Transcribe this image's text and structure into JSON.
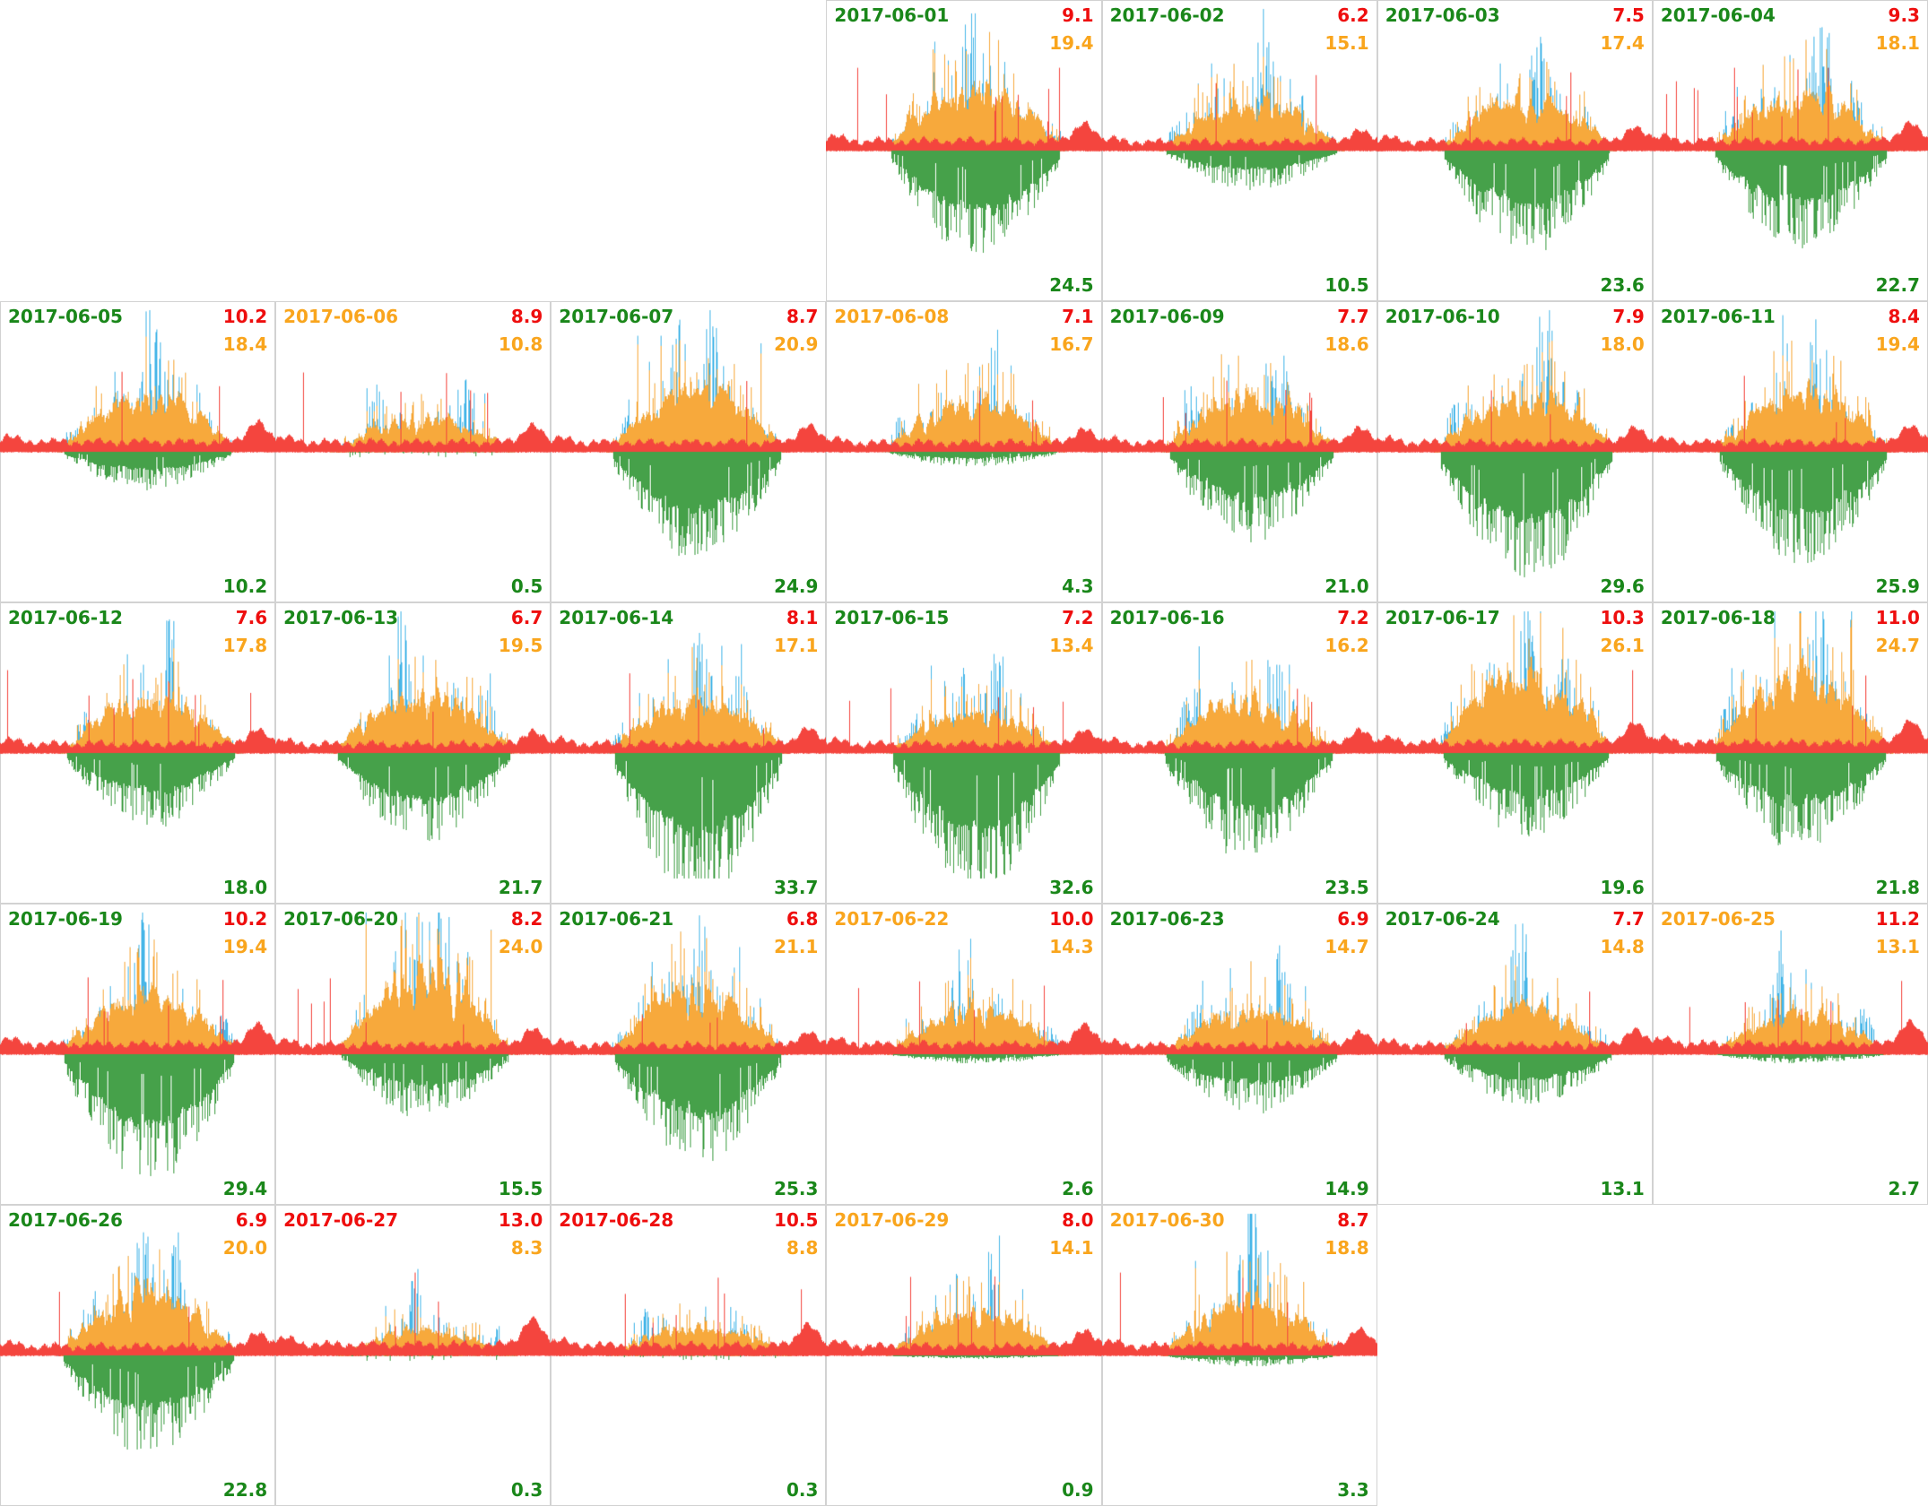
{
  "colors": {
    "text_green": "#1a871a",
    "text_orange": "#f9a51d",
    "text_red": "#ee0e0e",
    "chart_blue": "#49b7e8",
    "chart_orange": "#f7a93c",
    "chart_red": "#f4453e",
    "chart_green": "#46a14a",
    "cell_border": "#d2d2d2",
    "background": "#ffffff"
  },
  "chart_data": {
    "type": "area",
    "subtype": "small-multiples-daily-profiles",
    "title": "",
    "grid": {
      "rows": 5,
      "columns": 7,
      "first_panel_linear_index": 3
    },
    "x_axis": {
      "label": "",
      "range": "one day, no tick labels shown"
    },
    "y_axis": {
      "label": "",
      "baseline": 0,
      "note": "blue/orange/red areas plotted above baseline, green area mirrored below baseline; no tick labels shown"
    },
    "legend": "none shown; per-panel numbers are color-coded: red (top right), orange (below it), green (bottom right)",
    "panels": [
      {
        "date": "2017-06-01",
        "date_color": "green",
        "value_red": "9.1",
        "value_orange": "19.4",
        "value_green": "24.5"
      },
      {
        "date": "2017-06-02",
        "date_color": "green",
        "value_red": "6.2",
        "value_orange": "15.1",
        "value_green": "10.5"
      },
      {
        "date": "2017-06-03",
        "date_color": "green",
        "value_red": "7.5",
        "value_orange": "17.4",
        "value_green": "23.6"
      },
      {
        "date": "2017-06-04",
        "date_color": "green",
        "value_red": "9.3",
        "value_orange": "18.1",
        "value_green": "22.7"
      },
      {
        "date": "2017-06-05",
        "date_color": "green",
        "value_red": "10.2",
        "value_orange": "18.4",
        "value_green": "10.2"
      },
      {
        "date": "2017-06-06",
        "date_color": "orange",
        "value_red": "8.9",
        "value_orange": "10.8",
        "value_green": "0.5"
      },
      {
        "date": "2017-06-07",
        "date_color": "green",
        "value_red": "8.7",
        "value_orange": "20.9",
        "value_green": "24.9"
      },
      {
        "date": "2017-06-08",
        "date_color": "orange",
        "value_red": "7.1",
        "value_orange": "16.7",
        "value_green": "4.3"
      },
      {
        "date": "2017-06-09",
        "date_color": "green",
        "value_red": "7.7",
        "value_orange": "18.6",
        "value_green": "21.0"
      },
      {
        "date": "2017-06-10",
        "date_color": "green",
        "value_red": "7.9",
        "value_orange": "18.0",
        "value_green": "29.6"
      },
      {
        "date": "2017-06-11",
        "date_color": "green",
        "value_red": "8.4",
        "value_orange": "19.4",
        "value_green": "25.9"
      },
      {
        "date": "2017-06-12",
        "date_color": "green",
        "value_red": "7.6",
        "value_orange": "17.8",
        "value_green": "18.0"
      },
      {
        "date": "2017-06-13",
        "date_color": "green",
        "value_red": "6.7",
        "value_orange": "19.5",
        "value_green": "21.7"
      },
      {
        "date": "2017-06-14",
        "date_color": "green",
        "value_red": "8.1",
        "value_orange": "17.1",
        "value_green": "33.7"
      },
      {
        "date": "2017-06-15",
        "date_color": "green",
        "value_red": "7.2",
        "value_orange": "13.4",
        "value_green": "32.6"
      },
      {
        "date": "2017-06-16",
        "date_color": "green",
        "value_red": "7.2",
        "value_orange": "16.2",
        "value_green": "23.5"
      },
      {
        "date": "2017-06-17",
        "date_color": "green",
        "value_red": "10.3",
        "value_orange": "26.1",
        "value_green": "19.6"
      },
      {
        "date": "2017-06-18",
        "date_color": "green",
        "value_red": "11.0",
        "value_orange": "24.7",
        "value_green": "21.8"
      },
      {
        "date": "2017-06-19",
        "date_color": "green",
        "value_red": "10.2",
        "value_orange": "19.4",
        "value_green": "29.4"
      },
      {
        "date": "2017-06-20",
        "date_color": "green",
        "value_red": "8.2",
        "value_orange": "24.0",
        "value_green": "15.5"
      },
      {
        "date": "2017-06-21",
        "date_color": "green",
        "value_red": "6.8",
        "value_orange": "21.1",
        "value_green": "25.3"
      },
      {
        "date": "2017-06-22",
        "date_color": "orange",
        "value_red": "10.0",
        "value_orange": "14.3",
        "value_green": "2.6"
      },
      {
        "date": "2017-06-23",
        "date_color": "green",
        "value_red": "6.9",
        "value_orange": "14.7",
        "value_green": "14.9"
      },
      {
        "date": "2017-06-24",
        "date_color": "green",
        "value_red": "7.7",
        "value_orange": "14.8",
        "value_green": "13.1"
      },
      {
        "date": "2017-06-25",
        "date_color": "orange",
        "value_red": "11.2",
        "value_orange": "13.1",
        "value_green": "2.7"
      },
      {
        "date": "2017-06-26",
        "date_color": "green",
        "value_red": "6.9",
        "value_orange": "20.0",
        "value_green": "22.8"
      },
      {
        "date": "2017-06-27",
        "date_color": "red",
        "value_red": "13.0",
        "value_orange": "8.3",
        "value_green": "0.3"
      },
      {
        "date": "2017-06-28",
        "date_color": "red",
        "value_red": "10.5",
        "value_orange": "8.8",
        "value_green": "0.3"
      },
      {
        "date": "2017-06-29",
        "date_color": "orange",
        "value_red": "8.0",
        "value_orange": "14.1",
        "value_green": "0.9"
      },
      {
        "date": "2017-06-30",
        "date_color": "orange",
        "value_red": "8.7",
        "value_orange": "18.8",
        "value_green": "3.3"
      }
    ]
  }
}
